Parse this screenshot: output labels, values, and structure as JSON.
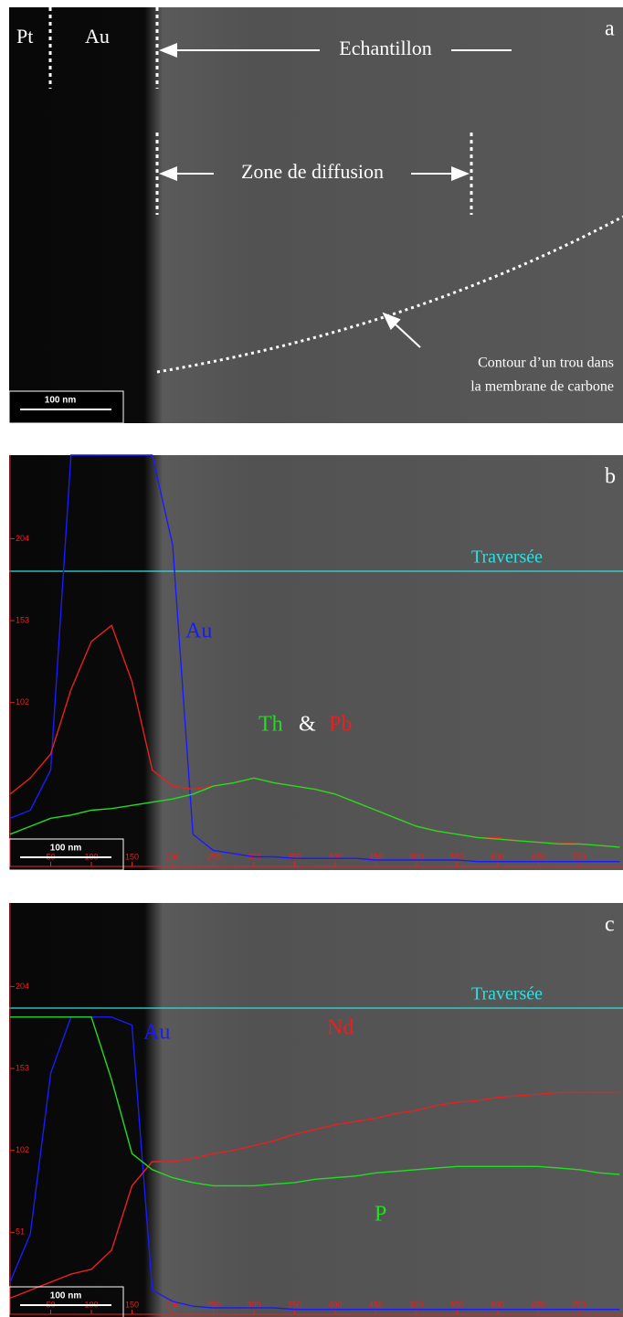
{
  "panels": {
    "a": {
      "label": "a",
      "pt": "Pt",
      "au": "Au",
      "sample": "Echantillon",
      "zone": "Zone de diffusion",
      "hole": [
        "Contour d’un trou dans",
        "la membrane de carbone"
      ],
      "scale_bar": "100 nm"
    }
  },
  "chart_data": [
    {
      "type": "line",
      "panel_label": "b",
      "traverse_label": "Traversée",
      "scale_bar": "100 nm",
      "annotations": [
        {
          "text": "Au",
          "color": "#1a1aff"
        },
        {
          "text": "Th",
          "color": "#22dd22"
        },
        {
          "text": "&",
          "color": "#ffffff"
        },
        {
          "text": "Pb",
          "color": "#e82020"
        }
      ],
      "x": [
        0,
        25,
        50,
        75,
        100,
        125,
        150,
        175,
        200,
        225,
        250,
        275,
        300,
        325,
        350,
        375,
        400,
        425,
        450,
        475,
        500,
        525,
        550,
        575,
        600,
        625,
        650,
        675,
        700,
        725,
        750
      ],
      "series": [
        {
          "name": "Au",
          "color": "#1a1aff",
          "values": [
            30,
            35,
            60,
            256,
            256,
            256,
            256,
            256,
            200,
            20,
            10,
            8,
            6,
            6,
            5,
            5,
            5,
            5,
            4,
            4,
            4,
            4,
            4,
            3,
            3,
            3,
            3,
            3,
            3,
            3,
            3
          ]
        },
        {
          "name": "Pb",
          "color": "#e82020",
          "values": [
            45,
            55,
            70,
            110,
            140,
            150,
            115,
            60,
            50,
            48,
            50,
            52,
            55,
            52,
            50,
            48,
            45,
            40,
            35,
            30,
            25,
            22,
            20,
            18,
            18,
            16,
            15,
            15,
            14,
            13,
            12
          ]
        },
        {
          "name": "Th",
          "color": "#22dd22",
          "values": [
            20,
            25,
            30,
            32,
            35,
            36,
            38,
            40,
            42,
            45,
            50,
            52,
            55,
            52,
            50,
            48,
            45,
            40,
            35,
            30,
            25,
            22,
            20,
            18,
            17,
            16,
            15,
            14,
            14,
            13,
            12
          ]
        }
      ],
      "xlim": [
        0,
        754
      ],
      "ylim": [
        0,
        256
      ],
      "xticks": [
        50,
        100,
        150,
        200,
        250,
        300,
        350,
        400,
        450,
        500,
        550,
        600,
        650,
        700
      ],
      "yticks": [
        102,
        153,
        204
      ]
    },
    {
      "type": "line",
      "panel_label": "c",
      "traverse_label": "Traversée",
      "scale_bar": "100 nm",
      "annotations": [
        {
          "text": "Au",
          "color": "#1a1aff"
        },
        {
          "text": "Nd",
          "color": "#e82020"
        },
        {
          "text": "P",
          "color": "#22dd22"
        }
      ],
      "x": [
        0,
        25,
        50,
        75,
        100,
        125,
        150,
        175,
        200,
        225,
        250,
        275,
        300,
        325,
        350,
        375,
        400,
        425,
        450,
        475,
        500,
        525,
        550,
        575,
        600,
        625,
        650,
        675,
        700,
        725,
        750
      ],
      "series": [
        {
          "name": "Au",
          "color": "#1a1aff",
          "values": [
            20,
            50,
            150,
            185,
            185,
            185,
            180,
            15,
            8,
            5,
            4,
            4,
            4,
            4,
            3,
            3,
            3,
            3,
            3,
            3,
            3,
            3,
            3,
            3,
            3,
            3,
            3,
            3,
            3,
            3,
            3
          ]
        },
        {
          "name": "Nd",
          "color": "#e82020",
          "values": [
            10,
            15,
            20,
            25,
            28,
            40,
            80,
            95,
            95,
            97,
            100,
            102,
            105,
            108,
            112,
            115,
            118,
            120,
            122,
            125,
            127,
            130,
            132,
            133,
            135,
            136,
            137,
            138,
            138,
            138,
            138
          ]
        },
        {
          "name": "P",
          "color": "#22dd22",
          "values": [
            185,
            185,
            185,
            185,
            185,
            146,
            100,
            90,
            85,
            82,
            80,
            80,
            80,
            81,
            82,
            84,
            85,
            86,
            88,
            89,
            90,
            91,
            92,
            92,
            92,
            92,
            92,
            91,
            90,
            88,
            87
          ]
        }
      ],
      "xlim": [
        0,
        754
      ],
      "ylim": [
        0,
        256
      ],
      "xticks": [
        50,
        100,
        150,
        200,
        250,
        300,
        350,
        400,
        450,
        500,
        550,
        600,
        650,
        700
      ],
      "yticks": [
        51,
        102,
        153,
        204
      ]
    }
  ]
}
